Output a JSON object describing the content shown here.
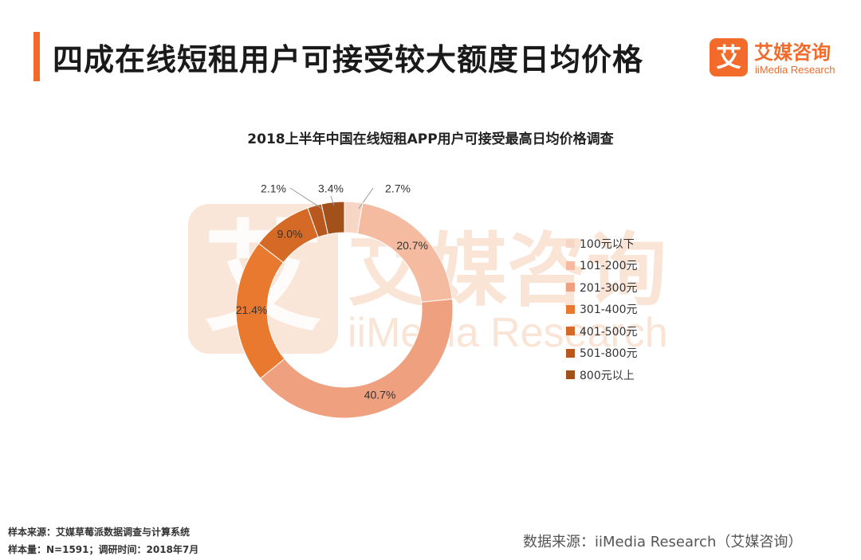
{
  "header": {
    "title": "四成在线短租用户可接受较大额度日均价格",
    "accent_color": "#f26b2b"
  },
  "logo": {
    "mark": "艾",
    "name_cn": "艾媒咨询",
    "name_en": "iiMedia Research"
  },
  "watermark": {
    "mark": "艾",
    "cn": "艾媒咨询",
    "en": "iiMedia Research"
  },
  "chart_data": {
    "type": "pie",
    "title": "2018上半年中国在线短租APP用户可接受最高日均价格调查",
    "donut": true,
    "legend_position": "right",
    "categories": [
      "100元以下",
      "101-200元",
      "201-300元",
      "301-400元",
      "401-500元",
      "501-800元",
      "800元以上"
    ],
    "values": [
      2.7,
      20.7,
      40.7,
      21.4,
      9.0,
      2.1,
      3.4
    ],
    "labels": [
      "2.7%",
      "20.7%",
      "40.7%",
      "21.4%",
      "9.0%",
      "2.1%",
      "3.4%"
    ],
    "colors": [
      "#f8d6c6",
      "#f4bba0",
      "#eea07f",
      "#e8792f",
      "#d46a25",
      "#b8581e",
      "#a3511b"
    ]
  },
  "footer": {
    "sample_source": "样本来源：艾媒草莓派数据调查与计算系统",
    "sample_size": "样本量：N=1591；调研时间：2018年7月",
    "data_source": "数据来源：iiMedia Research（艾媒咨询）"
  }
}
